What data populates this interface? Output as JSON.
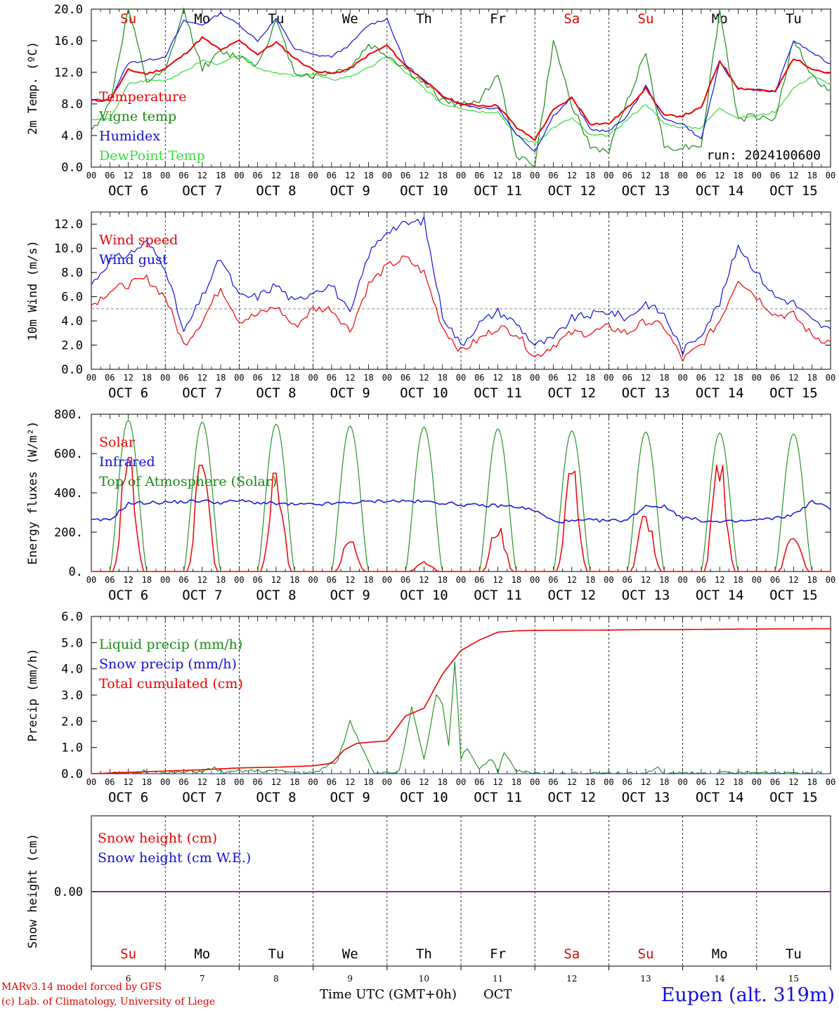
{
  "run_label": "run: 2024100600",
  "station": "Eupen (alt. 319m)",
  "credit_line1": "MARv3.14 model forced by GFS",
  "credit_line2": "(c) Lab. of Climatology, University of Liege",
  "x_axis": {
    "title": "Time UTC (GMT+0h)",
    "month": "OCT",
    "hour_ticks": [
      "00",
      "06",
      "12",
      "18"
    ],
    "day_labels": [
      "OCT  6",
      "OCT  7",
      "OCT  8",
      "OCT  9",
      "OCT 10",
      "OCT 11",
      "OCT 12",
      "OCT 13",
      "OCT 14",
      "OCT 15"
    ],
    "day_numbers": [
      "6",
      "7",
      "8",
      "9",
      "10",
      "11",
      "12",
      "13",
      "14",
      "15"
    ],
    "weekdays": [
      "Su",
      "Mo",
      "Tu",
      "We",
      "Th",
      "Fr",
      "Sa",
      "Su",
      "Mo",
      "Tu"
    ],
    "weekend_color": "#e00000"
  },
  "colors": {
    "red": "#ee0000",
    "green": "#1a8a1a",
    "blue": "#1010dd",
    "lightgreen": "#33dd33",
    "purple": "#7030a0"
  },
  "chart_data": [
    {
      "type": "line",
      "ylabel": "2m Temp. (ºC)",
      "ylim": [
        0,
        20
      ],
      "yticks": [
        "0.0",
        "4.0",
        "8.0",
        "12.0",
        "16.0",
        "20.0"
      ],
      "hours": [
        0,
        6,
        12,
        18,
        24,
        30,
        36,
        42,
        48,
        54,
        60,
        66,
        72,
        78,
        84,
        90,
        96,
        102,
        108,
        114,
        120,
        126,
        132,
        138,
        144,
        150,
        156,
        162,
        168,
        174,
        180,
        186,
        192,
        198,
        204,
        210,
        216,
        222,
        228,
        234,
        240
      ],
      "series": [
        {
          "name": "Temperature",
          "color": "red",
          "values": [
            8.4,
            8.5,
            12.3,
            11.8,
            12.5,
            14.2,
            16.4,
            14.8,
            16.0,
            14.3,
            15.8,
            13.8,
            12.3,
            11.8,
            12.5,
            14.2,
            15.4,
            12.8,
            11.0,
            9.0,
            8.0,
            7.8,
            7.8,
            5.0,
            3.5,
            7.2,
            8.8,
            5.5,
            5.5,
            7.5,
            10.0,
            6.5,
            6.5,
            7.5,
            13.5,
            10.0,
            9.8,
            9.5,
            13.8,
            12.5,
            11.8
          ]
        },
        {
          "name": "Vigne temp",
          "color": "green",
          "values": [
            4.5,
            8.0,
            20.0,
            10.8,
            12.0,
            19.8,
            12.5,
            14.5,
            14.0,
            13.0,
            18.5,
            12.0,
            11.5,
            12.0,
            12.5,
            15.5,
            14.2,
            12.5,
            10.5,
            8.5,
            7.8,
            8.5,
            11.8,
            1.5,
            0.3,
            15.8,
            8.0,
            2.5,
            2.0,
            8.5,
            14.5,
            2.5,
            2.5,
            2.8,
            19.8,
            6.0,
            6.5,
            6.0,
            16.2,
            11.5,
            9.5
          ]
        },
        {
          "name": "Humidex",
          "color": "blue",
          "values": [
            8.5,
            8.5,
            13.2,
            13.5,
            14.0,
            18.5,
            18.0,
            19.5,
            18.0,
            16.0,
            18.8,
            15.0,
            14.2,
            14.0,
            15.5,
            18.0,
            18.8,
            13.0,
            11.0,
            9.0,
            8.0,
            7.5,
            7.5,
            4.2,
            2.0,
            6.5,
            8.8,
            4.8,
            4.5,
            6.5,
            10.3,
            6.0,
            5.5,
            3.5,
            13.2,
            10.0,
            9.8,
            9.5,
            16.0,
            14.5,
            13.0
          ]
        },
        {
          "name": "DewPoint Temp",
          "color": "lightgreen",
          "values": [
            6.0,
            6.0,
            10.5,
            11.0,
            11.0,
            12.0,
            13.5,
            13.0,
            14.3,
            12.5,
            12.0,
            11.5,
            11.8,
            11.0,
            11.5,
            12.5,
            14.0,
            12.0,
            10.0,
            8.0,
            7.5,
            7.0,
            7.0,
            4.0,
            3.0,
            5.0,
            6.2,
            4.0,
            4.0,
            6.0,
            8.0,
            5.5,
            5.0,
            5.0,
            7.5,
            6.2,
            6.5,
            7.0,
            10.0,
            11.5,
            10.5
          ]
        }
      ]
    },
    {
      "type": "line",
      "ylabel": "10m Wind (m/s)",
      "ylim": [
        0,
        13
      ],
      "yticks": [
        "0.0",
        "2.0",
        "4.0",
        "6.0",
        "8.0",
        "10.0",
        "12.0"
      ],
      "reference_line": 5.0,
      "hours": [
        0,
        6,
        12,
        18,
        24,
        30,
        36,
        42,
        48,
        54,
        60,
        66,
        72,
        78,
        84,
        90,
        96,
        102,
        108,
        114,
        120,
        126,
        132,
        138,
        144,
        150,
        156,
        162,
        168,
        174,
        180,
        186,
        192,
        198,
        204,
        210,
        216,
        222,
        228,
        234,
        240
      ],
      "series": [
        {
          "name": "Wind speed",
          "color": "red",
          "values": [
            5.3,
            6.5,
            7.0,
            7.5,
            6.0,
            2.0,
            4.0,
            6.8,
            4.0,
            4.5,
            5.2,
            3.5,
            5.0,
            5.0,
            3.2,
            7.0,
            8.5,
            9.2,
            8.0,
            3.5,
            1.5,
            2.5,
            3.5,
            3.0,
            1.0,
            2.0,
            3.0,
            3.0,
            3.5,
            3.0,
            4.0,
            3.5,
            0.8,
            2.0,
            4.0,
            7.5,
            6.0,
            4.5,
            4.5,
            2.8,
            2.2
          ]
        },
        {
          "name": "Wind gust",
          "color": "blue",
          "values": [
            7.0,
            9.0,
            9.5,
            10.5,
            8.5,
            3.0,
            6.0,
            9.2,
            6.0,
            6.0,
            7.0,
            5.5,
            6.5,
            7.0,
            4.5,
            9.5,
            11.5,
            12.0,
            12.3,
            4.5,
            2.0,
            3.8,
            4.8,
            3.8,
            2.0,
            2.5,
            4.2,
            4.5,
            4.8,
            4.2,
            5.5,
            4.5,
            1.5,
            3.0,
            5.5,
            10.3,
            8.0,
            6.0,
            5.5,
            4.0,
            3.2
          ]
        }
      ]
    },
    {
      "type": "line",
      "ylabel": "Energy fluxes (W/m²)",
      "ylim": [
        0,
        800
      ],
      "yticks": [
        "0.",
        "200.",
        "400.",
        "600.",
        "800."
      ],
      "series": [
        {
          "name": "Solar",
          "color": "red",
          "peaks": [
            580,
            540,
            500,
            150,
            50,
            220,
            510,
            280,
            540,
            200
          ]
        },
        {
          "name": "Infrared",
          "color": "blue",
          "hours": [
            0,
            6,
            12,
            18,
            24,
            30,
            36,
            42,
            48,
            54,
            60,
            66,
            72,
            78,
            84,
            90,
            96,
            102,
            108,
            114,
            120,
            126,
            132,
            138,
            144,
            150,
            156,
            162,
            168,
            174,
            180,
            186,
            192,
            198,
            204,
            210,
            216,
            222,
            228,
            234,
            240
          ],
          "values": [
            260,
            262,
            345,
            350,
            352,
            355,
            360,
            350,
            360,
            350,
            345,
            340,
            340,
            345,
            350,
            355,
            360,
            358,
            355,
            350,
            340,
            335,
            335,
            330,
            310,
            255,
            255,
            260,
            258,
            262,
            335,
            330,
            275,
            260,
            250,
            255,
            262,
            270,
            290,
            355,
            320
          ]
        },
        {
          "name": "Top of Atmosphere (Solar)",
          "color": "green",
          "peaks": [
            770,
            760,
            750,
            740,
            735,
            725,
            715,
            710,
            705,
            700
          ]
        }
      ]
    },
    {
      "type": "line",
      "ylabel": "Precip (mm/h)",
      "ylim": [
        0,
        6
      ],
      "yticks": [
        "0.0",
        "1.0",
        "2.0",
        "3.0",
        "4.0",
        "5.0",
        "6.0"
      ],
      "series": [
        {
          "name": "Liquid precip (mm/h)",
          "color": "green",
          "hours": [
            0,
            14,
            17,
            20,
            24,
            36,
            40,
            44,
            48,
            60,
            72,
            80,
            84,
            88,
            92,
            96,
            100,
            104,
            108,
            112,
            114,
            116,
            118,
            120,
            122,
            126,
            130,
            132,
            134,
            138,
            144,
            168,
            180,
            184,
            186,
            190,
            228,
            240
          ],
          "values": [
            0,
            0,
            0.1,
            0,
            0,
            0.1,
            0.2,
            0,
            0.1,
            0.1,
            0,
            0.5,
            2.0,
            1.0,
            0,
            0,
            0.1,
            2.5,
            0.5,
            3.0,
            2.6,
            1.0,
            4.3,
            0.6,
            1.0,
            0.2,
            0.6,
            0,
            0.8,
            0.1,
            0,
            0,
            0,
            0.2,
            0,
            0,
            0.05,
            0
          ]
        },
        {
          "name": "Snow precip (mm/h)",
          "color": "blue",
          "hours": [
            0,
            240
          ],
          "values": [
            0,
            0
          ]
        },
        {
          "name": "Total cumulated (cm)",
          "color": "red",
          "hours": [
            0,
            12,
            24,
            36,
            48,
            60,
            72,
            78,
            82,
            86,
            90,
            96,
            102,
            108,
            114,
            120,
            126,
            132,
            138,
            144,
            168,
            180,
            192,
            216,
            240
          ],
          "values": [
            0,
            0.05,
            0.1,
            0.15,
            0.22,
            0.25,
            0.3,
            0.4,
            0.9,
            1.15,
            1.2,
            1.25,
            2.2,
            2.5,
            3.8,
            4.7,
            5.1,
            5.4,
            5.45,
            5.47,
            5.48,
            5.5,
            5.5,
            5.52,
            5.53
          ]
        }
      ]
    },
    {
      "type": "line",
      "ylabel": "Snow height (cm)",
      "yticks": [
        "0.00"
      ],
      "series": [
        {
          "name": "Snow height (cm)",
          "color": "red",
          "values": [
            0,
            0
          ]
        },
        {
          "name": "Snow height (cm W.E.)",
          "color": "blue",
          "values": [
            0,
            0
          ]
        }
      ]
    }
  ]
}
